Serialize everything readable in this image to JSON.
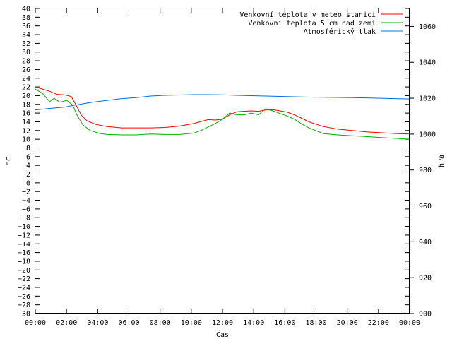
{
  "chart_data": {
    "type": "line",
    "xlabel": "Čas",
    "ylabel_left": "°C",
    "ylabel_right": "hPa",
    "x_ticks": [
      "00:00",
      "02:00",
      "04:00",
      "06:00",
      "08:00",
      "10:00",
      "12:00",
      "14:00",
      "16:00",
      "18:00",
      "20:00",
      "22:00",
      "00:00"
    ],
    "x_range_hours": [
      0,
      26
    ],
    "ylim_left": [
      -30,
      40
    ],
    "ylim_right": [
      900,
      1070
    ],
    "y_ticks_left": [
      40,
      38,
      36,
      34,
      32,
      30,
      28,
      26,
      24,
      22,
      20,
      18,
      16,
      14,
      12,
      10,
      8,
      6,
      4,
      2,
      0,
      -2,
      -4,
      -6,
      -8,
      -10,
      -12,
      -14,
      -16,
      -18,
      -20,
      -22,
      -24,
      -26,
      -28,
      -30
    ],
    "y_ticks_right": [
      1060,
      1040,
      1020,
      1000,
      980,
      960,
      940,
      920,
      900
    ],
    "grid": false,
    "legend_position": "top-right",
    "series": [
      {
        "name": "Venkovní teplota v meteo stanici",
        "axis": "left",
        "color": "#ff0000",
        "points": [
          [
            0,
            22.0
          ],
          [
            1.0,
            21.0
          ],
          [
            1.5,
            20.3
          ],
          [
            2.0,
            20.2
          ],
          [
            2.5,
            19.8
          ],
          [
            2.8,
            18.0
          ],
          [
            3.2,
            15.5
          ],
          [
            3.6,
            14.2
          ],
          [
            4.2,
            13.4
          ],
          [
            5.0,
            12.9
          ],
          [
            6.0,
            12.6
          ],
          [
            7.0,
            12.6
          ],
          [
            8.0,
            12.6
          ],
          [
            9.0,
            12.7
          ],
          [
            10.0,
            13.0
          ],
          [
            11.0,
            13.6
          ],
          [
            12.0,
            14.5
          ],
          [
            12.5,
            14.4
          ],
          [
            13.0,
            14.6
          ],
          [
            13.5,
            15.6
          ],
          [
            14.0,
            16.3
          ],
          [
            15.0,
            16.5
          ],
          [
            15.5,
            16.4
          ],
          [
            16.0,
            16.7
          ],
          [
            16.5,
            16.8
          ],
          [
            17.0,
            16.5
          ],
          [
            17.5,
            16.2
          ],
          [
            18.0,
            15.6
          ],
          [
            18.5,
            14.8
          ],
          [
            19.0,
            14.0
          ],
          [
            20.0,
            12.9
          ],
          [
            21.0,
            12.3
          ],
          [
            22.0,
            12.0
          ],
          [
            23.0,
            11.7
          ],
          [
            24.0,
            11.5
          ],
          [
            25.0,
            11.3
          ],
          [
            26.0,
            11.2
          ]
        ]
      },
      {
        "name": "Venkovní teplota 5 cm nad zemí",
        "axis": "left",
        "color": "#00b000",
        "points": [
          [
            0,
            21.5
          ],
          [
            0.5,
            20.5
          ],
          [
            1.0,
            18.6
          ],
          [
            1.3,
            19.4
          ],
          [
            1.7,
            18.5
          ],
          [
            2.2,
            18.9
          ],
          [
            2.6,
            17.8
          ],
          [
            2.9,
            15.5
          ],
          [
            3.3,
            13.3
          ],
          [
            3.8,
            12.0
          ],
          [
            4.5,
            11.3
          ],
          [
            5.0,
            11.1
          ],
          [
            6.0,
            11.0
          ],
          [
            7.0,
            11.0
          ],
          [
            8.0,
            11.2
          ],
          [
            9.0,
            11.1
          ],
          [
            10.0,
            11.1
          ],
          [
            11.0,
            11.4
          ],
          [
            11.5,
            12.0
          ],
          [
            12.0,
            12.8
          ],
          [
            12.5,
            13.6
          ],
          [
            13.0,
            14.6
          ],
          [
            13.5,
            16.0
          ],
          [
            14.0,
            15.6
          ],
          [
            14.5,
            15.6
          ],
          [
            15.0,
            16.0
          ],
          [
            15.5,
            15.6
          ],
          [
            16.0,
            17.0
          ],
          [
            16.5,
            16.5
          ],
          [
            17.0,
            15.9
          ],
          [
            17.5,
            15.3
          ],
          [
            18.0,
            14.6
          ],
          [
            18.5,
            13.5
          ],
          [
            19.0,
            12.6
          ],
          [
            20.0,
            11.3
          ],
          [
            21.0,
            11.0
          ],
          [
            22.0,
            10.8
          ],
          [
            23.0,
            10.6
          ],
          [
            24.0,
            10.4
          ],
          [
            25.0,
            10.2
          ],
          [
            26.0,
            10.0
          ]
        ]
      },
      {
        "name": "Atmosférický tlak",
        "axis": "right",
        "color": "#0070e0",
        "points": [
          [
            0,
            1013.5
          ],
          [
            1.0,
            1014.3
          ],
          [
            2.0,
            1015.0
          ],
          [
            3.0,
            1016.5
          ],
          [
            4.0,
            1017.8
          ],
          [
            5.0,
            1018.8
          ],
          [
            6.0,
            1019.8
          ],
          [
            7.0,
            1020.3
          ],
          [
            8.0,
            1021.2
          ],
          [
            9.0,
            1021.6
          ],
          [
            10.0,
            1021.8
          ],
          [
            11.0,
            1022.0
          ],
          [
            12.0,
            1022.0
          ],
          [
            13.0,
            1021.9
          ],
          [
            14.0,
            1021.6
          ],
          [
            15.0,
            1021.4
          ],
          [
            16.0,
            1021.2
          ],
          [
            17.0,
            1021.0
          ],
          [
            18.0,
            1020.8
          ],
          [
            19.0,
            1020.6
          ],
          [
            20.0,
            1020.5
          ],
          [
            21.0,
            1020.4
          ],
          [
            22.0,
            1020.3
          ],
          [
            23.0,
            1020.2
          ],
          [
            24.0,
            1020.0
          ],
          [
            25.0,
            1019.8
          ],
          [
            26.0,
            1019.6
          ]
        ]
      }
    ]
  }
}
